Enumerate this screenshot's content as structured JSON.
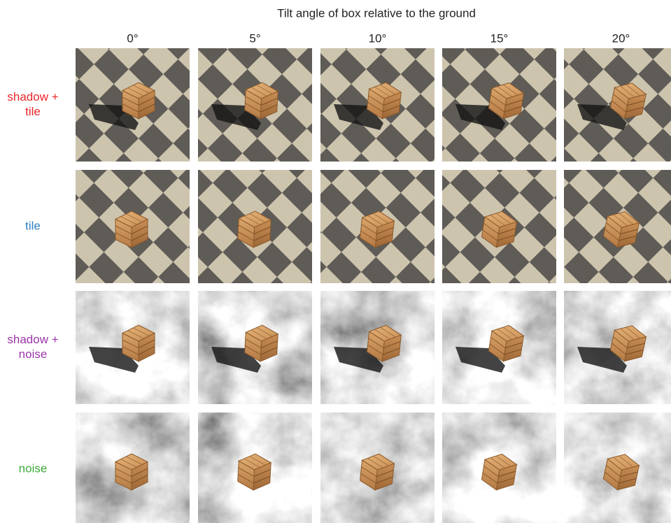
{
  "header": {
    "title": "Tilt angle of box relative to the ground"
  },
  "columns": [
    "0°",
    "5°",
    "10°",
    "15°",
    "20°"
  ],
  "rows": [
    {
      "label": [
        "shadow +",
        "tile"
      ],
      "color": "#e8262a"
    },
    {
      "label": [
        "tile"
      ],
      "color": "#2f7fc1"
    },
    {
      "label": [
        "shadow +",
        "noise"
      ],
      "color": "#9a35a8"
    },
    {
      "label": [
        "noise"
      ],
      "color": "#3caa3c"
    }
  ]
}
